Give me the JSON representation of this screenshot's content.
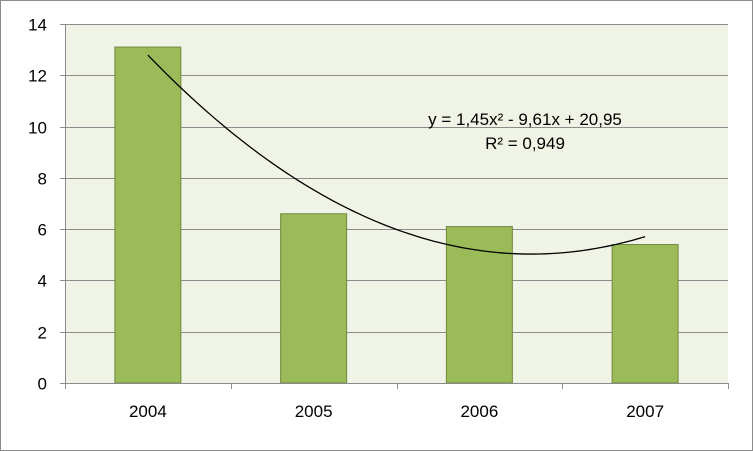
{
  "chart_data": {
    "type": "bar",
    "categories": [
      "2004",
      "2005",
      "2006",
      "2007"
    ],
    "values": [
      13.1,
      6.6,
      6.1,
      5.4
    ],
    "title": "",
    "xlabel": "",
    "ylabel": "",
    "ylim": [
      0,
      14
    ],
    "yticks": [
      "0",
      "2",
      "4",
      "6",
      "8",
      "10",
      "12",
      "14"
    ],
    "grid": true,
    "legend": "none",
    "trendline": {
      "type": "polynomial",
      "order": 2,
      "coefficients": [
        1.45,
        -9.61,
        20.95
      ],
      "equation": "y = 1,45x² - 9,61x + 20,95",
      "r_squared": "R² = 0,949"
    },
    "colors": {
      "bar_fill": "#9bbb59",
      "bar_stroke": "#71893f",
      "plot_background": "#f0f4e6",
      "gridline": "#8c8c8c",
      "trendline": "#000000"
    }
  }
}
